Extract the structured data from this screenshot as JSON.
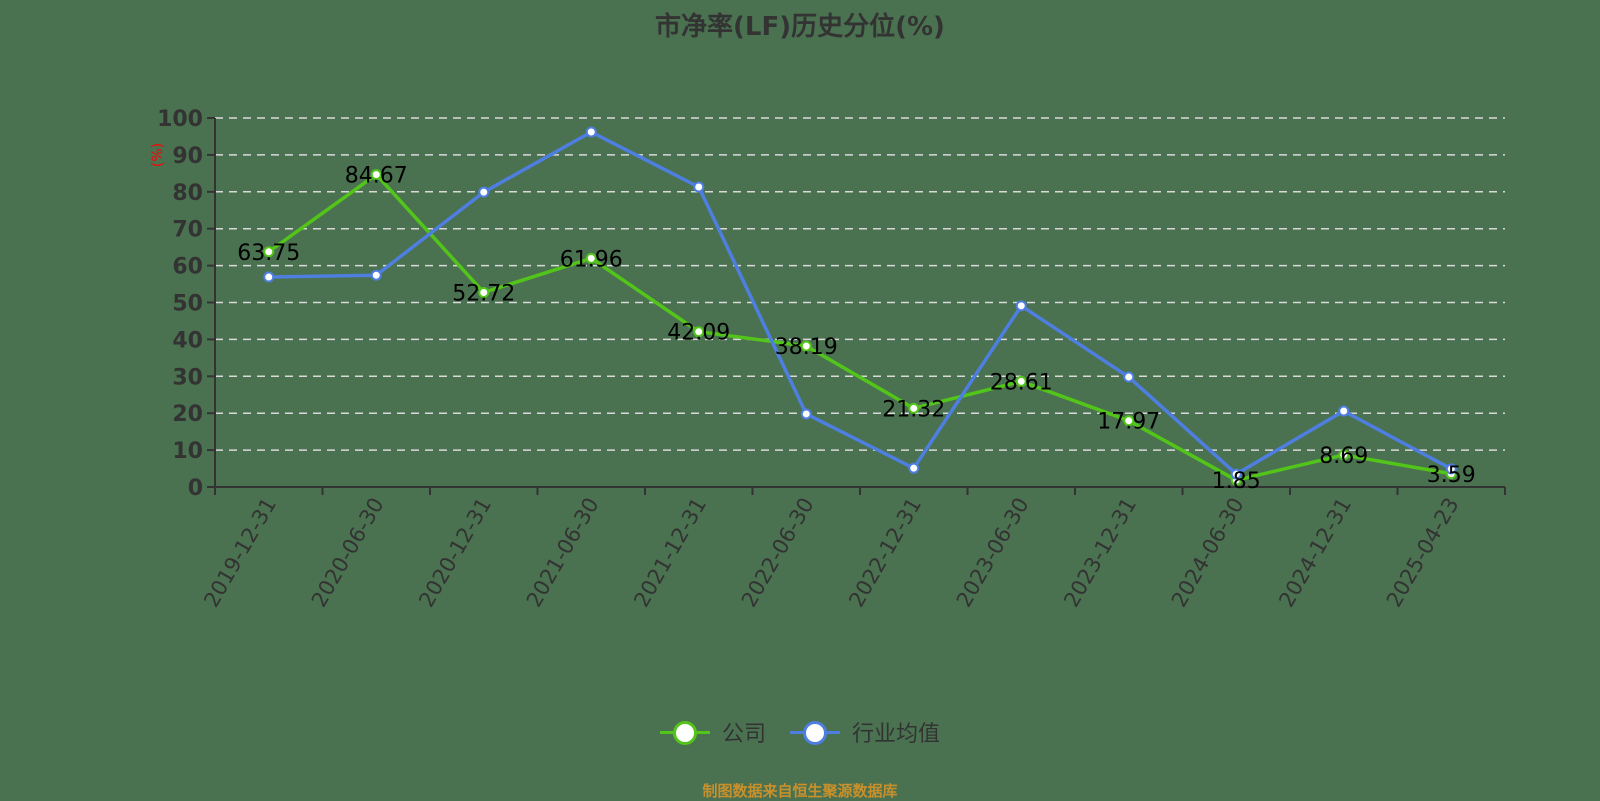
{
  "title": "市净率(LF)历史分位(%)",
  "footer": "制图数据来自恒生聚源数据库",
  "colors": {
    "background": "#4a7250",
    "company": "#52c41a",
    "industry": "#4e7fe0",
    "grid": "#d9d9d9",
    "axis": "#333333",
    "unit": "#ff0000",
    "footer": "#c8902c"
  },
  "legend": [
    {
      "name": "公司",
      "color": "#52c41a"
    },
    {
      "name": "行业均值",
      "color": "#4e7fe0"
    }
  ],
  "chart_data": {
    "type": "line",
    "title": "市净率(LF)历史分位(%)",
    "xlabel": "",
    "ylabel": "(%)",
    "ylim": [
      0,
      100
    ],
    "yticks": [
      0,
      10,
      20,
      30,
      40,
      50,
      60,
      70,
      80,
      90,
      100
    ],
    "grid": true,
    "legend_position": "bottom",
    "categories": [
      "2019-12-31",
      "2020-06-30",
      "2020-12-31",
      "2021-06-30",
      "2021-12-31",
      "2022-06-30",
      "2022-12-31",
      "2023-06-30",
      "2023-12-31",
      "2024-06-30",
      "2024-12-31",
      "2025-04-23"
    ],
    "series": [
      {
        "name": "公司",
        "values": [
          63.75,
          84.67,
          52.72,
          61.96,
          42.09,
          38.19,
          21.32,
          28.61,
          17.97,
          1.85,
          8.69,
          3.59
        ],
        "labels_shown": true
      },
      {
        "name": "行业均值",
        "values": [
          56.9,
          57.4,
          79.9,
          96.2,
          81.3,
          19.8,
          5.1,
          49.1,
          29.8,
          3.5,
          20.6,
          4.9
        ],
        "labels_shown": false
      }
    ]
  }
}
